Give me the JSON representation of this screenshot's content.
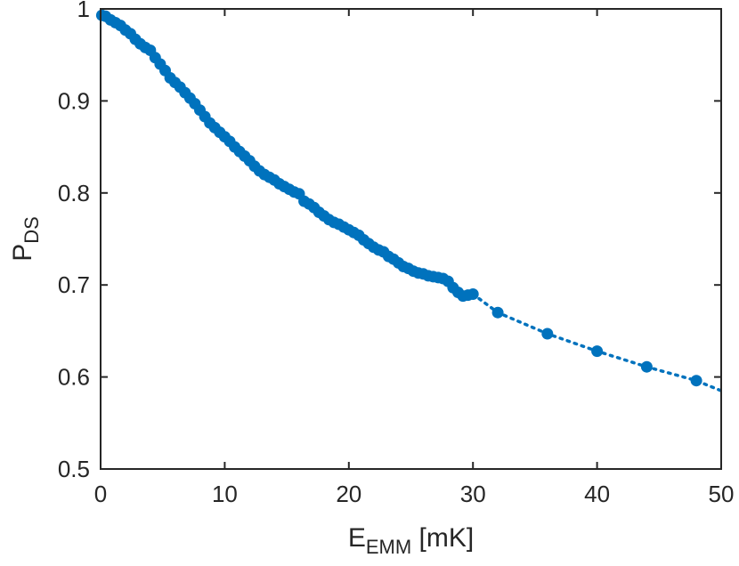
{
  "chart_data": {
    "type": "scatter",
    "title": "",
    "xlabel": {
      "main": "E",
      "sub": "EMM",
      "suffix": " [mK]"
    },
    "ylabel": {
      "main": "P",
      "sub": "DS"
    },
    "xlim": [
      0,
      50
    ],
    "ylim": [
      0.5,
      1.0
    ],
    "xticks": [
      0,
      10,
      20,
      30,
      40,
      50
    ],
    "yticks": [
      0.5,
      0.6,
      0.7,
      0.8,
      0.9,
      1.0
    ],
    "xtick_labels": [
      "0",
      "10",
      "20",
      "30",
      "40",
      "50"
    ],
    "ytick_labels": [
      "0.5",
      "0.6",
      "0.7",
      "0.8",
      "0.9",
      "1"
    ],
    "grid": false,
    "color": "#0072BD",
    "series": [
      {
        "style": "markers-solid-line",
        "x": [
          0.1,
          0.4,
          0.8,
          1.2,
          1.6,
          2.0,
          2.4,
          2.8,
          3.2,
          3.6,
          4.0,
          4.4,
          4.8,
          5.2,
          5.6,
          6.0,
          6.4,
          6.8,
          7.2,
          7.6,
          8.0,
          8.4,
          8.8,
          9.2,
          9.6,
          10.0,
          10.4,
          10.8,
          11.2,
          11.6,
          12.0,
          12.4,
          12.8,
          13.2,
          13.6,
          14.0,
          14.4,
          14.8,
          15.2,
          15.6,
          16.0,
          16.4,
          16.8,
          17.2,
          17.6,
          18.0,
          18.4,
          18.8,
          19.2,
          19.6,
          20.0,
          20.4,
          20.8,
          21.2,
          21.6,
          22.0,
          22.4,
          22.8,
          23.2,
          23.6,
          24.0,
          24.4,
          24.8,
          25.2,
          25.6,
          26.0,
          26.4,
          26.8,
          27.2,
          27.6,
          28.0,
          28.4,
          28.8,
          29.2,
          29.6,
          30.0
        ],
        "y": [
          0.993,
          0.992,
          0.988,
          0.985,
          0.982,
          0.977,
          0.973,
          0.967,
          0.962,
          0.958,
          0.955,
          0.947,
          0.94,
          0.933,
          0.925,
          0.92,
          0.915,
          0.909,
          0.903,
          0.897,
          0.89,
          0.883,
          0.876,
          0.871,
          0.866,
          0.861,
          0.856,
          0.85,
          0.845,
          0.84,
          0.835,
          0.829,
          0.824,
          0.82,
          0.817,
          0.814,
          0.81,
          0.807,
          0.804,
          0.801,
          0.799,
          0.791,
          0.788,
          0.784,
          0.779,
          0.775,
          0.771,
          0.768,
          0.766,
          0.763,
          0.76,
          0.757,
          0.754,
          0.749,
          0.745,
          0.741,
          0.738,
          0.736,
          0.731,
          0.728,
          0.724,
          0.72,
          0.718,
          0.715,
          0.713,
          0.712,
          0.71,
          0.709,
          0.708,
          0.707,
          0.704,
          0.697,
          0.692,
          0.688,
          0.689,
          0.69
        ]
      },
      {
        "style": "markers-dotted-line",
        "x": [
          30,
          32,
          36,
          40,
          44,
          48,
          50
        ],
        "y": [
          0.69,
          0.67,
          0.647,
          0.628,
          0.611,
          0.596,
          0.585
        ],
        "markers": [
          false,
          true,
          true,
          true,
          true,
          true,
          false
        ]
      }
    ]
  }
}
